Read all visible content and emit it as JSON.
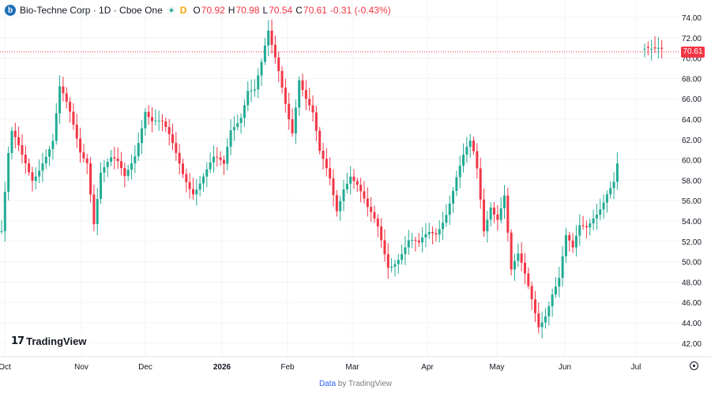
{
  "legend": {
    "title": "Bio-Techne Corp · 1D · Cboe One",
    "logo_letter": "b",
    "flag": "D",
    "open_label": "O",
    "open": "70.92",
    "high_label": "H",
    "high": "70.98",
    "low_label": "L",
    "low": "70.54",
    "close_label": "C",
    "close": "70.61",
    "change": "-0.31 (-0.43%)"
  },
  "last_price_label": "70.61",
  "branding": {
    "name": "TradingView"
  },
  "footer": {
    "link": "Data",
    "text": "by TradingView"
  },
  "colors": {
    "up": "#22ab94",
    "down": "#f23645",
    "grid": "#f0f3fa",
    "axis_text": "#131722"
  },
  "chart_data": {
    "type": "candlestick",
    "title": "Bio-Techne Corp · 1D · Cboe One",
    "ylim": [
      41.2,
      75.0
    ],
    "yticks": [
      "74.00",
      "72.00",
      "70.00",
      "68.00",
      "66.00",
      "64.00",
      "62.00",
      "60.00",
      "58.00",
      "56.00",
      "54.00",
      "52.00",
      "50.00",
      "48.00",
      "46.00",
      "44.00",
      "42.00"
    ],
    "xticks": [
      "Oct",
      "Nov",
      "Dec",
      "2026",
      "Feb",
      "Mar",
      "Apr",
      "May",
      "Jun",
      "Jul"
    ],
    "last_price": 70.61,
    "pivots": [
      [
        0,
        53
      ],
      [
        2,
        60
      ],
      [
        3,
        62
      ],
      [
        6,
        60
      ],
      [
        9,
        58.5
      ],
      [
        12,
        60.5
      ],
      [
        15,
        61.8
      ],
      [
        17,
        66.5
      ],
      [
        20,
        64
      ],
      [
        23,
        61
      ],
      [
        25,
        60.5
      ],
      [
        27,
        54.5
      ],
      [
        29,
        59
      ],
      [
        32,
        59.5
      ],
      [
        34,
        59
      ],
      [
        36,
        58
      ],
      [
        39,
        61
      ],
      [
        42,
        65.5
      ],
      [
        44,
        64
      ],
      [
        47,
        63
      ],
      [
        50,
        61
      ],
      [
        53,
        59
      ],
      [
        56,
        57.5
      ],
      [
        59,
        58.5
      ],
      [
        62,
        59.5
      ],
      [
        65,
        59
      ],
      [
        67,
        63
      ],
      [
        70,
        65
      ],
      [
        72,
        67.5
      ],
      [
        74,
        67
      ],
      [
        76,
        69
      ],
      [
        78,
        71.8
      ],
      [
        79,
        70.5
      ],
      [
        81,
        68.5
      ],
      [
        83,
        66
      ],
      [
        85,
        63.5
      ],
      [
        87,
        68.5
      ],
      [
        89,
        66
      ],
      [
        91,
        64
      ],
      [
        93,
        60
      ],
      [
        96,
        58
      ],
      [
        98,
        55.5
      ],
      [
        100,
        58
      ],
      [
        102,
        59
      ],
      [
        104,
        57.5
      ],
      [
        107,
        54.5
      ],
      [
        110,
        53
      ],
      [
        113,
        50
      ],
      [
        116,
        51
      ],
      [
        119,
        52
      ],
      [
        122,
        51
      ],
      [
        125,
        52.5
      ],
      [
        127,
        53
      ],
      [
        130,
        55.5
      ],
      [
        133,
        58.5
      ],
      [
        135,
        60
      ],
      [
        137,
        61
      ],
      [
        138,
        60
      ],
      [
        139,
        58.5
      ],
      [
        141,
        53
      ],
      [
        143,
        56
      ],
      [
        145,
        55
      ],
      [
        147,
        57
      ],
      [
        149,
        49
      ],
      [
        151,
        50
      ],
      [
        153,
        48
      ],
      [
        155,
        46
      ],
      [
        157,
        44
      ],
      [
        159,
        45.5
      ],
      [
        161,
        47.5
      ],
      [
        163,
        48.5
      ],
      [
        165,
        52
      ],
      [
        167,
        50.5
      ],
      [
        169,
        53
      ],
      [
        171,
        53.5
      ],
      [
        173,
        55
      ],
      [
        175,
        56
      ],
      [
        177,
        57
      ],
      [
        179,
        57.5
      ],
      [
        180,
        59
      ],
      [
        188,
        70.92
      ],
      [
        189,
        71.0
      ],
      [
        190,
        70.9
      ],
      [
        191,
        70.95
      ],
      [
        192,
        71.0
      ],
      [
        193,
        70.92
      ]
    ]
  }
}
